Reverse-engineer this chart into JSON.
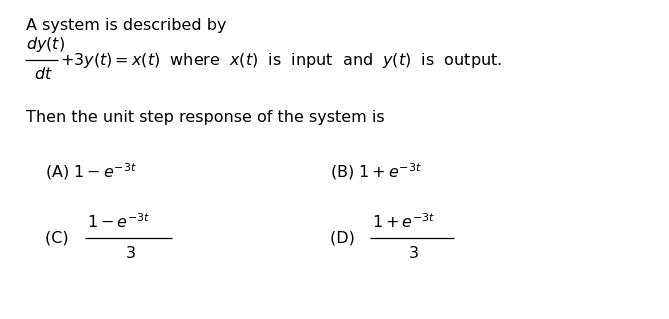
{
  "bg_color": "#ffffff",
  "text_color": "#000000",
  "fig_width": 6.69,
  "fig_height": 3.19,
  "dpi": 100,
  "line1": "A system is described by",
  "line3": "Then the unit step response of the system is",
  "equation_rhs": "$+ 3y(t) = x(t)$  where  $x(t)$  is  input  and  $y(t)$  is  output.",
  "dy_num": "$dy(t)$",
  "dy_den": "$dt$",
  "optA": "(A) $1 - e^{-3t}$",
  "optB": "(B) $1 + e^{-3t}$",
  "optC_label": "(C) ",
  "optC_num": "$1 - e^{-3t}$",
  "optC_den": "$3$",
  "optD_label": "(D) ",
  "optD_num": "$1+e^{-3t}$",
  "optD_den": "$3$",
  "fs": 11.5,
  "fs_small": 9
}
